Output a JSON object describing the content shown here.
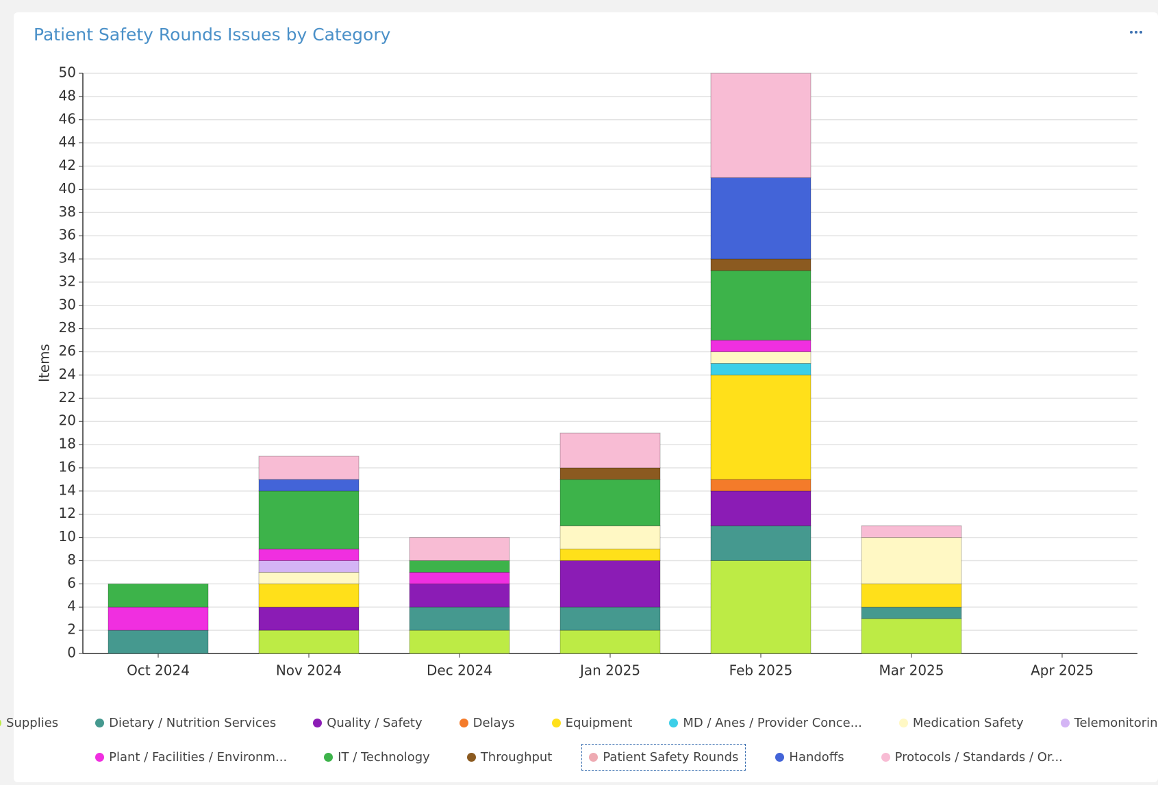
{
  "chart_data": {
    "type": "bar",
    "stacked": true,
    "title": "Patient Safety Rounds Issues by Category",
    "ylabel": "Items",
    "categories": [
      "Oct 2024",
      "Nov 2024",
      "Dec 2024",
      "Jan 2025",
      "Feb 2025",
      "Mar 2025",
      "Apr 2025"
    ],
    "ylim": [
      0,
      50
    ],
    "yticks": [
      0,
      2,
      4,
      6,
      8,
      10,
      12,
      14,
      16,
      18,
      20,
      22,
      24,
      26,
      28,
      30,
      32,
      34,
      36,
      38,
      40,
      42,
      44,
      46,
      48,
      50
    ],
    "grid": true,
    "legend": "bottom",
    "series": [
      {
        "name": "Supplies",
        "color": "#bdeb45",
        "values": [
          0,
          2,
          2,
          2,
          8,
          3,
          0
        ]
      },
      {
        "name": "Dietary / Nutrition Services",
        "color": "#45998f",
        "values": [
          2,
          0,
          2,
          2,
          3,
          1,
          0
        ]
      },
      {
        "name": "Quality / Safety",
        "color": "#8b1cb5",
        "values": [
          0,
          2,
          2,
          4,
          3,
          0,
          0
        ]
      },
      {
        "name": "Delays",
        "color": "#f47b2a",
        "values": [
          0,
          0,
          0,
          0,
          1,
          0,
          0
        ]
      },
      {
        "name": "Equipment",
        "color": "#ffe01a",
        "values": [
          0,
          2,
          0,
          1,
          9,
          2,
          0
        ]
      },
      {
        "name": "MD / Anes / Provider Conce...",
        "color": "#3ccfe8",
        "values": [
          0,
          0,
          0,
          0,
          1,
          0,
          0
        ]
      },
      {
        "name": "Medication Safety",
        "color": "#fff8c4",
        "values": [
          0,
          1,
          0,
          2,
          1,
          4,
          0
        ]
      },
      {
        "name": "Telemonitoring",
        "color": "#d4b5f5",
        "values": [
          0,
          1,
          0,
          0,
          0,
          0,
          0
        ]
      },
      {
        "name": "Plant / Facilities / Environm...",
        "color": "#f02fe0",
        "values": [
          2,
          1,
          1,
          0,
          1,
          0,
          0
        ]
      },
      {
        "name": "IT / Technology",
        "color": "#3db34a",
        "values": [
          2,
          5,
          1,
          4,
          6,
          0,
          0
        ]
      },
      {
        "name": "Throughput",
        "color": "#8b5a20",
        "values": [
          0,
          0,
          0,
          1,
          1,
          0,
          0
        ]
      },
      {
        "name": "Patient Safety Rounds",
        "color": "#eeaab2",
        "values": [
          0,
          0,
          0,
          0,
          0,
          0,
          0
        ]
      },
      {
        "name": "Handoffs",
        "color": "#4364d8",
        "values": [
          0,
          1,
          0,
          0,
          7,
          0,
          0
        ]
      },
      {
        "name": "Protocols / Standards / Or...",
        "color": "#f8bcd4",
        "values": [
          0,
          2,
          2,
          3,
          9,
          1,
          0
        ]
      }
    ]
  }
}
